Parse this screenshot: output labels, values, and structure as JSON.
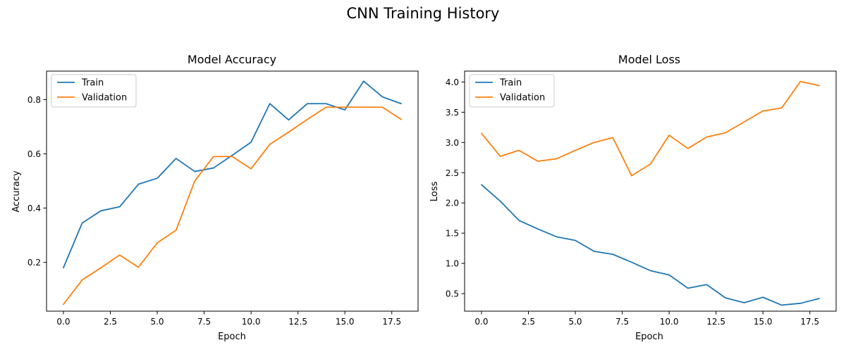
{
  "figure": {
    "suptitle": "CNN Training History"
  },
  "colors": {
    "train": "#1f77b4",
    "validation": "#ff7f0e"
  },
  "chart_data": [
    {
      "type": "line",
      "title": "Model Accuracy",
      "xlabel": "Epoch",
      "ylabel": "Accuracy",
      "xlim": [
        -0.9,
        18.9
      ],
      "ylim": [
        0.02,
        0.905
      ],
      "xticks": [
        0,
        2.5,
        5,
        7.5,
        10,
        12.5,
        15,
        17.5
      ],
      "xtick_labels": [
        "0.0",
        "2.5",
        "5.0",
        "7.5",
        "10.0",
        "12.5",
        "15.0",
        "17.5"
      ],
      "yticks": [
        0.2,
        0.4,
        0.6,
        0.8
      ],
      "ytick_labels": [
        "0.2",
        "0.4",
        "0.6",
        "0.8"
      ],
      "legend": "top-left",
      "grid": false,
      "x": [
        0,
        1,
        2,
        3,
        4,
        5,
        6,
        7,
        8,
        9,
        10,
        11,
        12,
        13,
        14,
        15,
        16,
        17,
        18
      ],
      "series": [
        {
          "name": "Train",
          "values": [
            0.18,
            0.345,
            0.39,
            0.405,
            0.488,
            0.51,
            0.583,
            0.535,
            0.548,
            0.595,
            0.643,
            0.785,
            0.725,
            0.785,
            0.785,
            0.762,
            0.868,
            0.81,
            0.785
          ]
        },
        {
          "name": "Validation",
          "values": [
            0.045,
            0.135,
            0.18,
            0.227,
            0.182,
            0.272,
            0.318,
            0.5,
            0.59,
            0.59,
            0.545,
            0.635,
            0.68,
            0.727,
            0.772,
            0.772,
            0.772,
            0.772,
            0.727
          ]
        }
      ]
    },
    {
      "type": "line",
      "title": "Model Loss",
      "xlabel": "Epoch",
      "ylabel": "Loss",
      "xlim": [
        -0.9,
        18.9
      ],
      "ylim": [
        0.21,
        4.18
      ],
      "xticks": [
        0,
        2.5,
        5,
        7.5,
        10,
        12.5,
        15,
        17.5
      ],
      "xtick_labels": [
        "0.0",
        "2.5",
        "5.0",
        "7.5",
        "10.0",
        "12.5",
        "15.0",
        "17.5"
      ],
      "yticks": [
        0.5,
        1.0,
        1.5,
        2.0,
        2.5,
        3.0,
        3.5,
        4.0
      ],
      "ytick_labels": [
        "0.5",
        "1.0",
        "1.5",
        "2.0",
        "2.5",
        "3.0",
        "3.5",
        "4.0"
      ],
      "legend": "top-left",
      "grid": false,
      "x": [
        0,
        1,
        2,
        3,
        4,
        5,
        6,
        7,
        8,
        9,
        10,
        11,
        12,
        13,
        14,
        15,
        16,
        17,
        18
      ],
      "series": [
        {
          "name": "Train",
          "values": [
            2.3,
            2.03,
            1.71,
            1.57,
            1.44,
            1.38,
            1.2,
            1.15,
            1.02,
            0.88,
            0.81,
            0.59,
            0.65,
            0.43,
            0.35,
            0.44,
            0.31,
            0.34,
            0.42
          ]
        },
        {
          "name": "Validation",
          "values": [
            3.15,
            2.77,
            2.87,
            2.69,
            2.73,
            2.87,
            3.0,
            3.08,
            2.45,
            2.64,
            3.12,
            2.9,
            3.09,
            3.16,
            3.34,
            3.52,
            3.57,
            4.01,
            3.94
          ]
        }
      ]
    }
  ]
}
